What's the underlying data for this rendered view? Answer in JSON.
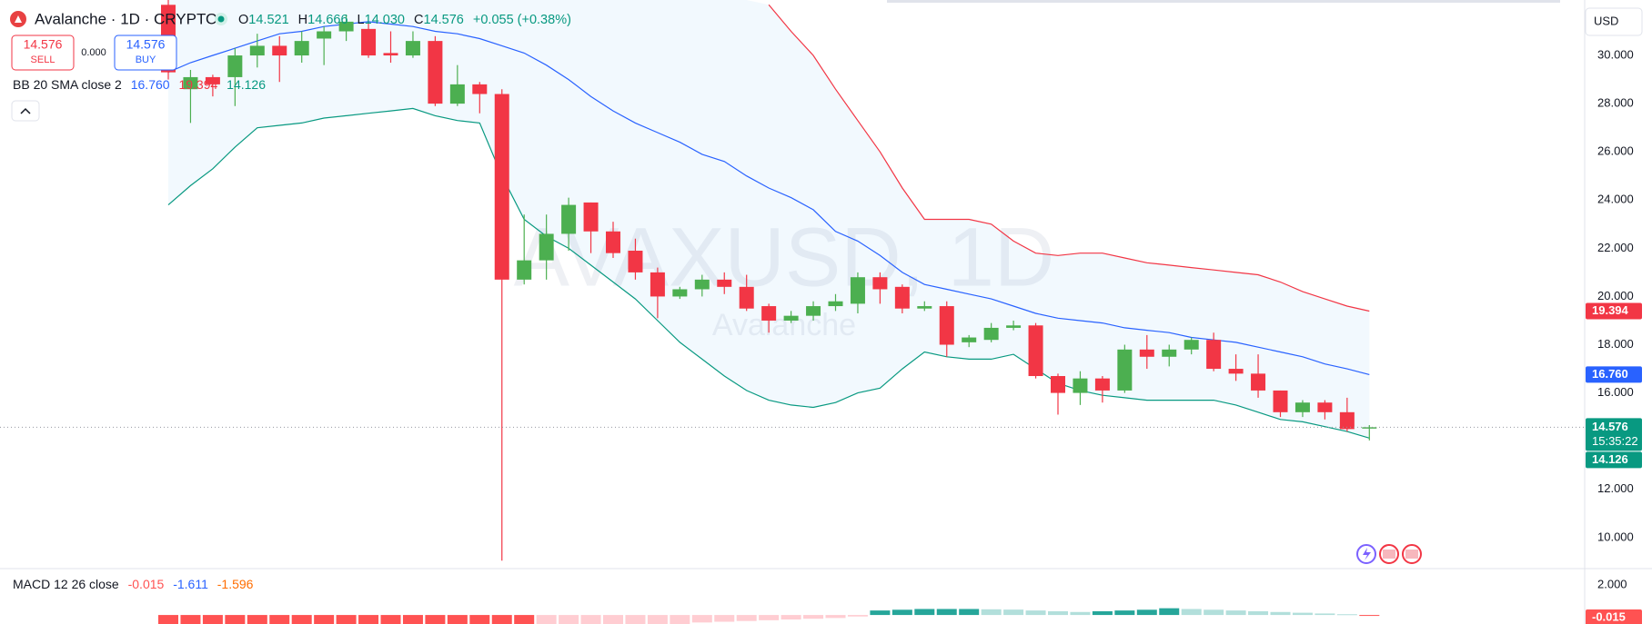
{
  "chart_data": {
    "type": "candlestick",
    "header": {
      "symbol": "Avalanche · 1D · CRYPTO",
      "o": "O",
      "h": "H",
      "l": "L",
      "c": "C",
      "low_label": "14.030",
      "change": "+0.055 (+0.38%)"
    },
    "trade": {
      "sell_price": 14.576,
      "sell": "SELL",
      "spread": "0.000",
      "buy_price": 14.576,
      "buy": "BUY"
    },
    "currency": "USD",
    "countdown": "15:35:22",
    "watermark": "AVAXUSD, 1D",
    "watermark_sub": "Avalanche",
    "up_color": "#4caf50",
    "down_color": "#f23645",
    "grid": false,
    "ylim": [
      8.75,
      32.3
    ],
    "yticks": [
      {
        "value": 10,
        "label": "10.000"
      },
      {
        "value": 12,
        "label": "12.000"
      },
      {
        "value": 14,
        "label": "14.000"
      },
      {
        "value": 16,
        "label": "16.000"
      },
      {
        "value": 18,
        "label": "18.000"
      },
      {
        "value": 20,
        "label": "20.000"
      },
      {
        "value": 22,
        "label": "22.000"
      },
      {
        "value": 24,
        "label": "24.000"
      },
      {
        "value": 26,
        "label": "26.000"
      },
      {
        "value": 28,
        "label": "28.000"
      },
      {
        "value": 30,
        "label": "30.000"
      }
    ],
    "candles": {
      "open": [
        32.1,
        28.6,
        29.1,
        29.1,
        30.0,
        30.4,
        30.0,
        30.7,
        31.0,
        31.1,
        30.1,
        30.0,
        30.6,
        28.0,
        28.8,
        28.4,
        20.7,
        21.5,
        22.6,
        23.9,
        22.7,
        21.9,
        21.0,
        20.0,
        20.3,
        20.7,
        20.4,
        19.6,
        19.0,
        19.2,
        19.6,
        19.7,
        20.8,
        20.4,
        19.5,
        19.6,
        18.1,
        18.2,
        18.7,
        18.8,
        16.7,
        16.0,
        16.6,
        16.1,
        17.8,
        17.5,
        17.8,
        18.2,
        17.0,
        16.8,
        16.1,
        15.2,
        15.6,
        15.2,
        14.521
      ],
      "high": [
        32.3,
        29.4,
        29.2,
        30.3,
        30.9,
        30.8,
        31.0,
        31.2,
        31.7,
        31.4,
        31.0,
        31.0,
        30.8,
        29.6,
        28.9,
        28.6,
        23.4,
        23.4,
        24.1,
        23.9,
        23.1,
        22.4,
        21.2,
        20.4,
        20.9,
        21.0,
        20.9,
        19.7,
        19.4,
        19.8,
        20.1,
        21.0,
        21.0,
        20.5,
        19.8,
        19.8,
        18.4,
        18.9,
        19.0,
        18.9,
        16.8,
        16.9,
        16.7,
        18.0,
        18.4,
        18.0,
        18.3,
        18.5,
        17.6,
        17.6,
        16.1,
        15.7,
        15.7,
        15.8,
        14.666
      ],
      "low": [
        29.0,
        27.2,
        28.3,
        27.9,
        29.5,
        28.9,
        29.7,
        29.6,
        30.6,
        29.9,
        29.7,
        29.9,
        27.9,
        27.9,
        27.6,
        9.04,
        20.5,
        20.7,
        21.9,
        21.8,
        21.6,
        20.7,
        19.1,
        19.9,
        20.0,
        20.1,
        19.4,
        18.5,
        18.9,
        19.0,
        19.4,
        19.3,
        19.7,
        19.3,
        19.4,
        17.5,
        17.9,
        18.1,
        18.6,
        16.6,
        15.1,
        15.5,
        15.6,
        16.0,
        17.0,
        17.1,
        17.6,
        16.9,
        16.5,
        15.8,
        15.0,
        15.0,
        14.9,
        14.4,
        14.03
      ],
      "close": [
        29.3,
        29.1,
        28.8,
        30.0,
        30.4,
        30.0,
        30.6,
        31.0,
        31.4,
        30.0,
        30.0,
        30.6,
        28.0,
        28.8,
        28.4,
        20.7,
        21.5,
        22.6,
        23.8,
        22.7,
        21.8,
        21.0,
        20.0,
        20.3,
        20.7,
        20.4,
        19.5,
        19.0,
        19.2,
        19.6,
        19.8,
        20.8,
        20.3,
        19.5,
        19.6,
        18.0,
        18.3,
        18.7,
        18.8,
        16.7,
        16.0,
        16.6,
        16.1,
        17.8,
        17.5,
        17.8,
        18.2,
        17.0,
        16.8,
        16.1,
        15.2,
        15.6,
        15.2,
        14.5,
        14.576
      ]
    },
    "bollinger": {
      "label": "BB 20 SMA close 2",
      "basis_color": "#2962ff",
      "upper_color": "#f23645",
      "lower_color": "#089981",
      "fill": "rgba(33,150,243,0.06)",
      "basis_label": "16.760",
      "upper_label": "19.394",
      "lower_label": "14.126",
      "basis": [
        29.3,
        29.7,
        30.0,
        30.3,
        30.6,
        30.9,
        31.0,
        31.2,
        31.3,
        31.4,
        31.3,
        31.2,
        31.0,
        30.9,
        30.7,
        30.4,
        30.1,
        29.6,
        29.0,
        28.3,
        27.7,
        27.2,
        26.8,
        26.4,
        25.9,
        25.6,
        25.0,
        24.5,
        24.1,
        23.6,
        22.7,
        22.3,
        21.7,
        21.0,
        20.5,
        20.3,
        20.1,
        19.9,
        19.6,
        19.3,
        19.1,
        19.0,
        18.9,
        18.7,
        18.6,
        18.5,
        18.3,
        18.2,
        18.1,
        17.9,
        17.7,
        17.5,
        17.2,
        17.0,
        16.76
      ],
      "upper": [
        null,
        null,
        null,
        null,
        null,
        null,
        null,
        null,
        null,
        null,
        null,
        null,
        null,
        null,
        null,
        null,
        null,
        null,
        null,
        null,
        null,
        null,
        null,
        null,
        null,
        null,
        null,
        32.1,
        31.0,
        30.0,
        28.6,
        27.3,
        26.0,
        24.5,
        23.2,
        23.2,
        23.2,
        23.0,
        22.3,
        21.8,
        21.7,
        21.8,
        21.8,
        21.6,
        21.4,
        21.3,
        21.2,
        21.1,
        21.0,
        20.9,
        20.6,
        20.2,
        19.9,
        19.6,
        19.394
      ],
      "lower": [
        23.8,
        24.6,
        25.3,
        26.2,
        27.0,
        27.1,
        27.2,
        27.4,
        27.5,
        27.6,
        27.7,
        27.8,
        27.5,
        27.3,
        27.2,
        25.0,
        23.2,
        22.5,
        22.0,
        21.3,
        20.6,
        19.9,
        19.0,
        18.1,
        17.4,
        16.7,
        16.1,
        15.7,
        15.5,
        15.4,
        15.6,
        16.0,
        16.2,
        17.0,
        17.7,
        17.5,
        17.4,
        17.4,
        17.6,
        17.0,
        16.4,
        16.1,
        15.9,
        15.8,
        15.7,
        15.7,
        15.7,
        15.7,
        15.5,
        15.2,
        14.9,
        14.8,
        14.6,
        14.4,
        14.126
      ]
    },
    "macd": {
      "label": "MACD 12 26 close",
      "macd_value": -1.611,
      "signal_value": -1.596,
      "macd_color": "#2962ff",
      "signal_color": "#ff6d00",
      "up_strong": "#26a69a",
      "up_weak": "#b2dfdb",
      "down_strong": "#ff5252",
      "down_weak": "#ffcdd2",
      "ylim": [
        -0.6,
        3.03
      ],
      "yticks": [
        {
          "value": 2,
          "label": "2.000"
        }
      ],
      "histogram": [
        -0.6,
        -0.8,
        -0.9,
        -1.0,
        -1.0,
        -1.0,
        -1.0,
        -1.0,
        -1.0,
        -1.0,
        -1.0,
        -1.0,
        -1.0,
        -1.2,
        -1.3,
        -1.4,
        -1.4,
        -1.3,
        -1.1,
        -1.0,
        -0.9,
        -0.8,
        -0.7,
        -0.6,
        -0.5,
        -0.45,
        -0.4,
        -0.35,
        -0.3,
        -0.25,
        -0.2,
        -0.1,
        0.3,
        0.35,
        0.4,
        0.4,
        0.4,
        0.38,
        0.36,
        0.3,
        0.25,
        0.2,
        0.25,
        0.3,
        0.35,
        0.45,
        0.4,
        0.35,
        0.3,
        0.25,
        0.2,
        0.15,
        0.1,
        0.05,
        -0.015
      ]
    }
  }
}
